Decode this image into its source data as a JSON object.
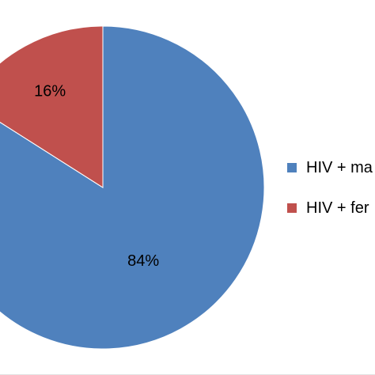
{
  "colors": {
    "series_1": "#4F81BD",
    "series_2": "#C0504D",
    "border": "#e2e2e2"
  },
  "chart_data": {
    "type": "pie",
    "title": "",
    "slices": [
      {
        "label": "HIV + ma",
        "value": 84,
        "display": "84%",
        "color": "#4F81BD"
      },
      {
        "label": "HIV + fer",
        "value": 16,
        "display": "16%",
        "color": "#C0504D"
      }
    ],
    "start_angle_deg": 0,
    "direction": "clockwise",
    "legend_position": "right"
  }
}
